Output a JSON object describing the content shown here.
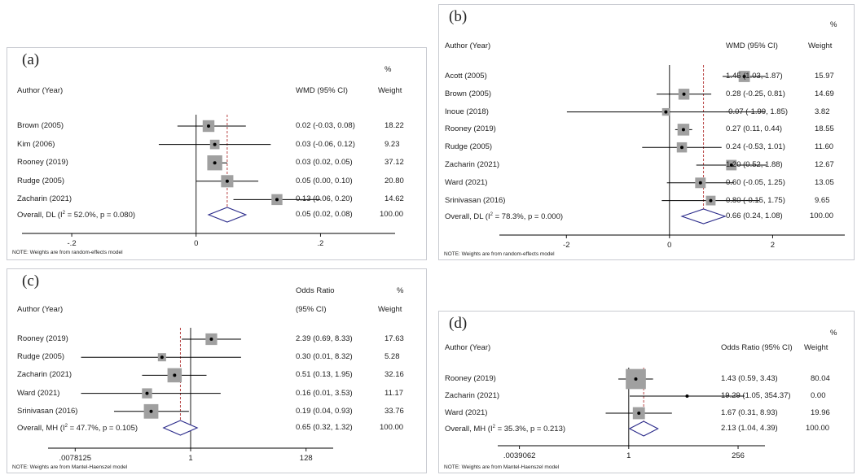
{
  "colors": {
    "ci_line": "#000000",
    "weight_box": "#a0a0a0",
    "ref_line": "#b03030",
    "diamond": "#2a2a8a",
    "border": "#c9cbd1"
  },
  "chart_data": [
    {
      "type": "forest",
      "panel_label": "(a)",
      "header": {
        "study": "Author (Year)",
        "effect": "WMD (95% CI)",
        "effect_line2": "",
        "pct": "%",
        "weight": "Weight"
      },
      "scale": "linear",
      "xlim": [
        -0.28,
        0.32
      ],
      "ticks": [
        {
          "v": -0.2,
          "label": "-.2"
        },
        {
          "v": 0,
          "label": "0"
        },
        {
          "v": 0.2,
          "label": ".2"
        }
      ],
      "ref_line": 0,
      "null_line": 0.05,
      "studies": [
        {
          "name": "Brown (2005)",
          "est": 0.02,
          "lo": -0.03,
          "hi": 0.08,
          "ci": "0.02 (-0.03, 0.08)",
          "weight": "18.22"
        },
        {
          "name": "Kim (2006)",
          "est": 0.03,
          "lo": -0.06,
          "hi": 0.12,
          "ci": "0.03 (-0.06, 0.12)",
          "weight": "9.23"
        },
        {
          "name": "Rooney (2019)",
          "est": 0.03,
          "lo": 0.02,
          "hi": 0.05,
          "ci": "0.03 (0.02, 0.05)",
          "weight": "37.12"
        },
        {
          "name": "Rudge (2005)",
          "est": 0.05,
          "lo": 0.0,
          "hi": 0.1,
          "ci": "0.05 (0.00, 0.10)",
          "weight": "20.80"
        },
        {
          "name": "Zacharin (2021)",
          "est": 0.13,
          "lo": 0.06,
          "hi": 0.2,
          "ci": "0.13 (0.06, 0.20)",
          "weight": "14.62"
        }
      ],
      "overall": {
        "name_prefix": "Overall, DL (I",
        "name_sup": "2",
        "name_suffix": " = 52.0%, p = 0.080)",
        "est": 0.05,
        "lo": 0.02,
        "hi": 0.08,
        "ci": "0.05 (0.02, 0.08)",
        "weight": "100.00"
      },
      "note": "NOTE: Weights are from random-effects model"
    },
    {
      "type": "forest",
      "panel_label": "(b)",
      "header": {
        "study": "Author (Year)",
        "effect": "WMD (95% CI)",
        "effect_line2": "",
        "pct": "%",
        "weight": "Weight"
      },
      "scale": "linear",
      "xlim": [
        -3.3,
        3.4
      ],
      "ticks": [
        {
          "v": -2,
          "label": "-2"
        },
        {
          "v": 0,
          "label": "0"
        },
        {
          "v": 2,
          "label": "2"
        }
      ],
      "ref_line": 0,
      "null_line": 0.66,
      "studies": [
        {
          "name": "Acott (2005)",
          "est": 1.45,
          "lo": 1.03,
          "hi": 1.87,
          "ci": "1.45 (1.03, 1.87)",
          "weight": "15.97"
        },
        {
          "name": "Brown (2005)",
          "est": 0.28,
          "lo": -0.25,
          "hi": 0.81,
          "ci": "0.28 (-0.25, 0.81)",
          "weight": "14.69"
        },
        {
          "name": "Inoue (2018)",
          "est": -0.07,
          "lo": -1.99,
          "hi": 1.85,
          "ci": "-0.07 (-1.99, 1.85)",
          "weight": "3.82"
        },
        {
          "name": "Rooney (2019)",
          "est": 0.27,
          "lo": 0.11,
          "hi": 0.44,
          "ci": "0.27 (0.11, 0.44)",
          "weight": "18.55"
        },
        {
          "name": "Rudge (2005)",
          "est": 0.24,
          "lo": -0.53,
          "hi": 1.01,
          "ci": "0.24 (-0.53, 1.01)",
          "weight": "11.60"
        },
        {
          "name": "Zacharin (2021)",
          "est": 1.2,
          "lo": 0.52,
          "hi": 1.88,
          "ci": "1.20 (0.52, 1.88)",
          "weight": "12.67"
        },
        {
          "name": "Ward (2021)",
          "est": 0.6,
          "lo": -0.05,
          "hi": 1.25,
          "ci": "0.60 (-0.05, 1.25)",
          "weight": "13.05"
        },
        {
          "name": "Srinivasan (2016)",
          "est": 0.8,
          "lo": -0.15,
          "hi": 1.75,
          "ci": "0.80 (-0.15, 1.75)",
          "weight": "9.65"
        }
      ],
      "overall": {
        "name_prefix": "Overall, DL (I",
        "name_sup": "2",
        "name_suffix": " = 78.3%, p = 0.000)",
        "est": 0.66,
        "lo": 0.24,
        "hi": 1.08,
        "ci": "0.66 (0.24, 1.08)",
        "weight": "100.00"
      },
      "note": "NOTE: Weights are from random-effects model"
    },
    {
      "type": "forest",
      "panel_label": "(c)",
      "header": {
        "study": "Author (Year)",
        "effect": "Odds Ratio",
        "effect_line2": "(95% CI)",
        "pct": "%",
        "weight": "Weight"
      },
      "scale": "log",
      "xlim": [
        0.0025,
        400
      ],
      "ticks": [
        {
          "v": 0.0078125,
          "label": ".0078125"
        },
        {
          "v": 1,
          "label": "1"
        },
        {
          "v": 128,
          "label": "128"
        }
      ],
      "ref_line": 1,
      "null_line": 0.65,
      "studies": [
        {
          "name": "Rooney (2019)",
          "est": 2.39,
          "lo": 0.69,
          "hi": 8.33,
          "ci": "2.39 (0.69, 8.33)",
          "weight": "17.63"
        },
        {
          "name": "Rudge (2005)",
          "est": 0.3,
          "lo": 0.01,
          "hi": 8.32,
          "ci": "0.30 (0.01, 8.32)",
          "weight": "5.28"
        },
        {
          "name": "Zacharin (2021)",
          "est": 0.51,
          "lo": 0.13,
          "hi": 1.95,
          "ci": "0.51 (0.13, 1.95)",
          "weight": "32.16"
        },
        {
          "name": "Ward (2021)",
          "est": 0.16,
          "lo": 0.01,
          "hi": 3.53,
          "ci": "0.16 (0.01, 3.53)",
          "weight": "11.17"
        },
        {
          "name": "Srinivasan (2016)",
          "est": 0.19,
          "lo": 0.04,
          "hi": 0.93,
          "ci": "0.19 (0.04, 0.93)",
          "weight": "33.76"
        }
      ],
      "overall": {
        "name_prefix": "Overall, MH (I",
        "name_sup": "2",
        "name_suffix": " = 47.7%, p = 0.105)",
        "est": 0.65,
        "lo": 0.32,
        "hi": 1.32,
        "ci": "0.65 (0.32, 1.32)",
        "weight": "100.00"
      },
      "note": "NOTE: Weights are from Mantel-Haenszel model"
    },
    {
      "type": "forest",
      "panel_label": "(d)",
      "header": {
        "study": "Author (Year)",
        "effect": "Odds Ratio (95% CI)",
        "effect_line2": "",
        "pct": "%",
        "weight": "Weight"
      },
      "scale": "log",
      "xlim": [
        0.0013,
        1000
      ],
      "ticks": [
        {
          "v": 0.0039062,
          "label": ".0039062"
        },
        {
          "v": 1,
          "label": "1"
        },
        {
          "v": 256,
          "label": "256"
        }
      ],
      "ref_line": 1,
      "null_line": 2.13,
      "studies": [
        {
          "name": "Rooney (2019)",
          "est": 1.43,
          "lo": 0.59,
          "hi": 3.43,
          "ci": "1.43 (0.59, 3.43)",
          "weight": "80.04"
        },
        {
          "name": "Zacharin (2021)",
          "est": 19.29,
          "lo": 1.05,
          "hi": 354.37,
          "ci": "19.29 (1.05, 354.37)",
          "weight": "0.00"
        },
        {
          "name": "Ward (2021)",
          "est": 1.67,
          "lo": 0.31,
          "hi": 8.93,
          "ci": "1.67 (0.31, 8.93)",
          "weight": "19.96"
        }
      ],
      "overall": {
        "name_prefix": "Overall, MH (I",
        "name_sup": "2",
        "name_suffix": " = 35.3%, p = 0.213)",
        "est": 2.13,
        "lo": 1.04,
        "hi": 4.39,
        "ci": "2.13 (1.04, 4.39)",
        "weight": "100.00"
      },
      "note": "NOTE: Weights are from Mantel-Haenszel model"
    }
  ]
}
